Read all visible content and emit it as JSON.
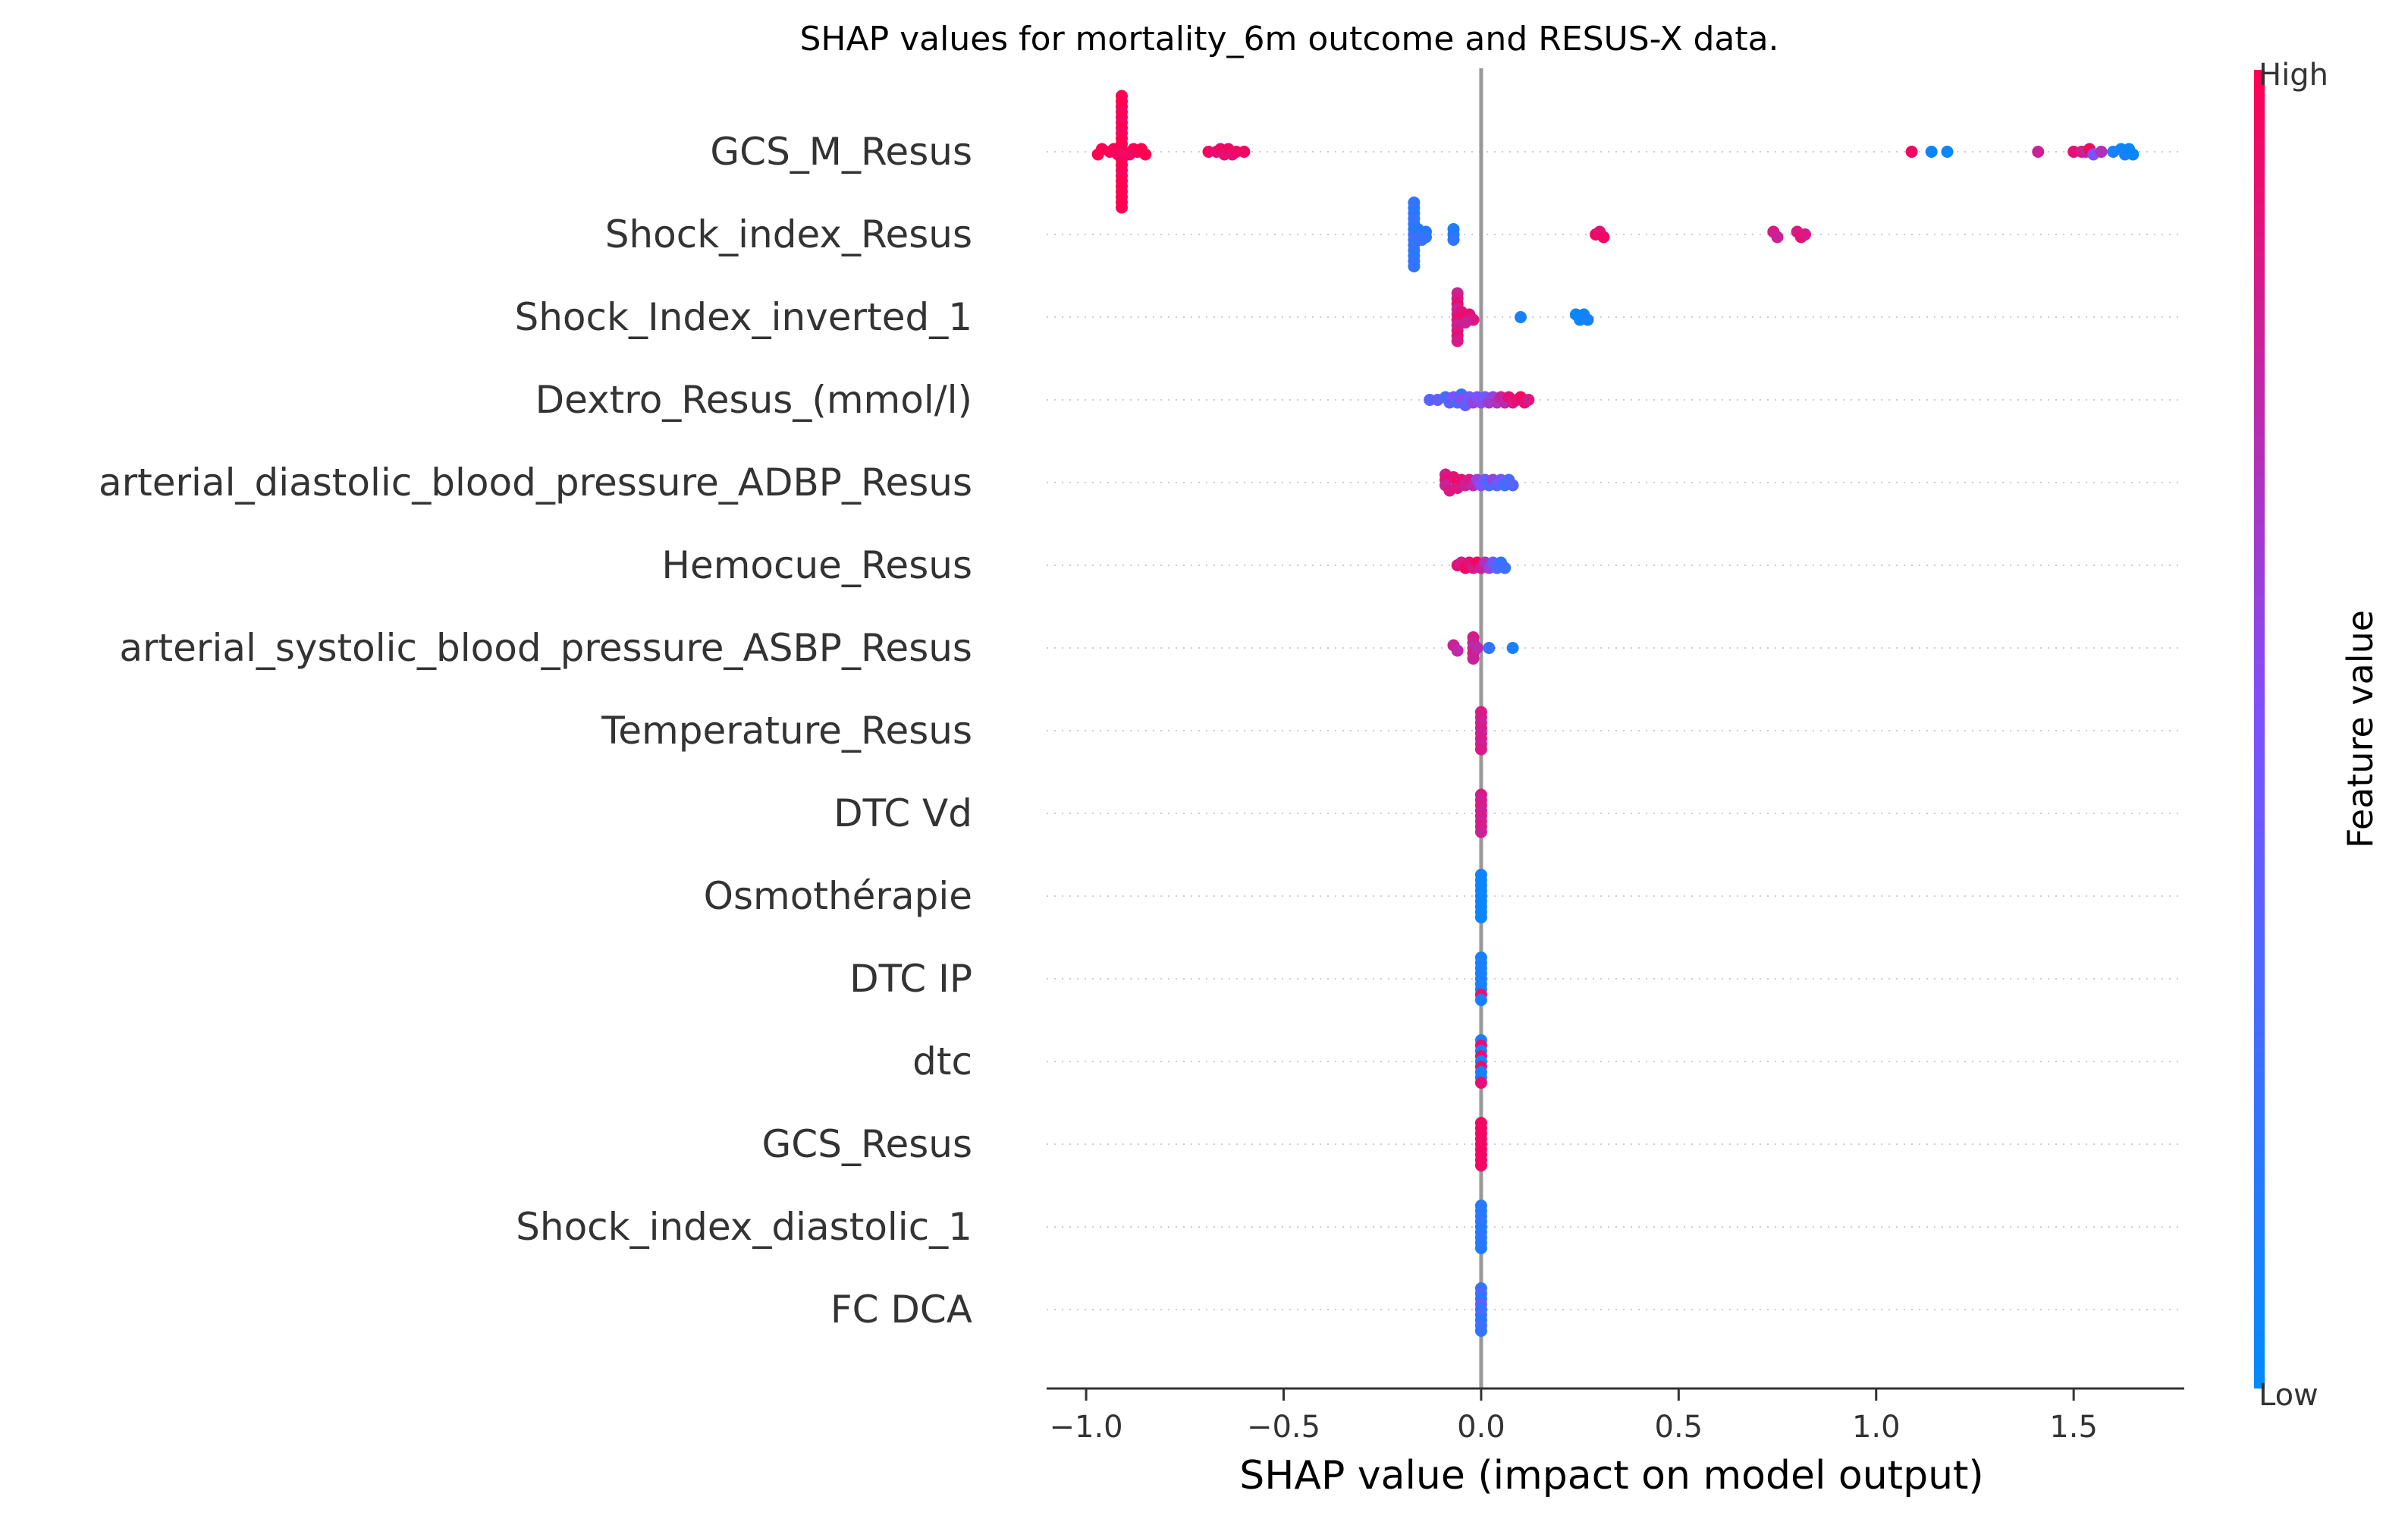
{
  "chart_data": {
    "type": "scatter",
    "subtype": "shap-beeswarm",
    "title": "SHAP values for mortality_6m outcome and RESUS-X data.",
    "xlabel": "SHAP value (impact on model output)",
    "ylabel": "",
    "xlim": [
      -1.1,
      1.78
    ],
    "xticks": [
      -1.0,
      -0.5,
      0.0,
      0.5,
      1.0,
      1.5
    ],
    "xtick_labels": [
      "−1.0",
      "−0.5",
      "0.0",
      "0.5",
      "1.0",
      "1.5"
    ],
    "grid": false,
    "colorbar": {
      "label": "Feature value",
      "high_label": "High",
      "low_label": "Low",
      "low_color": "#008bfb",
      "mid_color": "#7c52ff",
      "high_color": "#ff0052"
    },
    "zero_line_color": "#999999",
    "features": [
      {
        "name": "GCS_M_Resus",
        "points": [
          [
            -0.91,
            1.0
          ],
          [
            -0.91,
            1.0
          ],
          [
            -0.91,
            1.0
          ],
          [
            -0.91,
            0.95
          ],
          [
            -0.91,
            1.0
          ],
          [
            -0.91,
            0.95
          ],
          [
            -0.91,
            1.0
          ],
          [
            -0.91,
            0.95
          ],
          [
            -0.91,
            1.0
          ],
          [
            -0.91,
            1.0
          ],
          [
            -0.91,
            1.0
          ],
          [
            -0.91,
            0.95
          ],
          [
            -0.91,
            1.0
          ],
          [
            -0.91,
            1.0
          ],
          [
            -0.91,
            1.0
          ],
          [
            -0.91,
            0.95
          ],
          [
            -0.91,
            1.0
          ],
          [
            -0.91,
            1.0
          ],
          [
            -0.91,
            1.0
          ],
          [
            -0.91,
            1.0
          ],
          [
            -0.91,
            1.0
          ],
          [
            -0.91,
            1.0
          ],
          [
            -0.94,
            1.0
          ],
          [
            -0.93,
            1.0
          ],
          [
            -0.88,
            1.0
          ],
          [
            -0.87,
            1.0
          ],
          [
            -0.86,
            1.0
          ],
          [
            -0.96,
            1.0
          ],
          [
            -0.97,
            1.0
          ],
          [
            -0.85,
            1.0
          ],
          [
            -0.89,
            0.95
          ],
          [
            -0.92,
            0.95
          ],
          [
            -0.69,
            0.95
          ],
          [
            -0.67,
            0.9
          ],
          [
            -0.66,
            0.95
          ],
          [
            -0.65,
            0.9
          ],
          [
            -0.64,
            0.95
          ],
          [
            -0.63,
            0.9
          ],
          [
            -0.62,
            0.95
          ],
          [
            -0.6,
            0.95
          ],
          [
            1.09,
            0.95
          ],
          [
            1.14,
            0.05
          ],
          [
            1.18,
            0.05
          ],
          [
            1.41,
            0.8
          ],
          [
            1.5,
            0.9
          ],
          [
            1.52,
            0.85
          ],
          [
            1.53,
            0.8
          ],
          [
            1.54,
            0.95
          ],
          [
            1.55,
            0.5
          ],
          [
            1.57,
            0.7
          ],
          [
            1.6,
            0.1
          ],
          [
            1.62,
            0.05
          ],
          [
            1.63,
            0.1
          ],
          [
            1.64,
            0.05
          ],
          [
            1.65,
            0.05
          ]
        ]
      },
      {
        "name": "Shock_index_Resus",
        "points": [
          [
            -0.17,
            0.2
          ],
          [
            -0.17,
            0.2
          ],
          [
            -0.17,
            0.15
          ],
          [
            -0.17,
            0.2
          ],
          [
            -0.17,
            0.2
          ],
          [
            -0.17,
            0.15
          ],
          [
            -0.17,
            0.2
          ],
          [
            -0.17,
            0.25
          ],
          [
            -0.17,
            0.2
          ],
          [
            -0.17,
            0.2
          ],
          [
            -0.17,
            0.15
          ],
          [
            -0.17,
            0.2
          ],
          [
            -0.17,
            0.2
          ],
          [
            -0.16,
            0.15
          ],
          [
            -0.15,
            0.2
          ],
          [
            -0.14,
            0.15
          ],
          [
            -0.15,
            0.25
          ],
          [
            -0.14,
            0.2
          ],
          [
            -0.07,
            0.1
          ],
          [
            -0.07,
            0.15
          ],
          [
            -0.07,
            0.2
          ],
          [
            0.29,
            0.95
          ],
          [
            0.3,
            0.9
          ],
          [
            0.31,
            0.95
          ],
          [
            0.74,
            0.85
          ],
          [
            0.75,
            0.8
          ],
          [
            0.8,
            0.85
          ],
          [
            0.81,
            0.9
          ],
          [
            0.82,
            0.85
          ]
        ]
      },
      {
        "name": "Shock_Index_inverted_1",
        "points": [
          [
            -0.06,
            0.8
          ],
          [
            -0.06,
            0.85
          ],
          [
            -0.06,
            0.9
          ],
          [
            -0.06,
            0.8
          ],
          [
            -0.06,
            0.85
          ],
          [
            -0.06,
            0.9
          ],
          [
            -0.06,
            0.8
          ],
          [
            -0.06,
            0.85
          ],
          [
            -0.06,
            0.9
          ],
          [
            -0.06,
            0.85
          ],
          [
            -0.05,
            0.9
          ],
          [
            -0.04,
            0.95
          ],
          [
            -0.03,
            0.9
          ],
          [
            -0.02,
            0.85
          ],
          [
            -0.04,
            0.8
          ],
          [
            0.1,
            0.1
          ],
          [
            0.24,
            0.05
          ],
          [
            0.25,
            0.05
          ],
          [
            0.26,
            0.05
          ],
          [
            0.27,
            0.1
          ]
        ]
      },
      {
        "name": "Dextro_Resus_(mmol/l)",
        "points": [
          [
            -0.13,
            0.35
          ],
          [
            -0.11,
            0.4
          ],
          [
            -0.09,
            0.3
          ],
          [
            -0.08,
            0.35
          ],
          [
            -0.07,
            0.5
          ],
          [
            -0.06,
            0.3
          ],
          [
            -0.05,
            0.25
          ],
          [
            -0.05,
            0.55
          ],
          [
            -0.04,
            0.4
          ],
          [
            -0.03,
            0.45
          ],
          [
            -0.02,
            0.6
          ],
          [
            -0.01,
            0.5
          ],
          [
            0.0,
            0.55
          ],
          [
            0.01,
            0.45
          ],
          [
            0.02,
            0.65
          ],
          [
            0.03,
            0.6
          ],
          [
            0.04,
            0.7
          ],
          [
            0.05,
            0.8
          ],
          [
            0.06,
            0.75
          ],
          [
            0.07,
            0.9
          ],
          [
            0.08,
            0.85
          ],
          [
            0.09,
            0.9
          ],
          [
            0.1,
            0.95
          ],
          [
            0.11,
            0.9
          ],
          [
            0.12,
            0.85
          ]
        ]
      },
      {
        "name": "arterial_diastolic_blood_pressure_ADBP_Resus",
        "points": [
          [
            -0.09,
            0.85
          ],
          [
            -0.09,
            0.9
          ],
          [
            -0.09,
            0.8
          ],
          [
            -0.08,
            0.85
          ],
          [
            -0.07,
            0.9
          ],
          [
            -0.06,
            0.95
          ],
          [
            -0.06,
            0.85
          ],
          [
            -0.05,
            0.9
          ],
          [
            -0.04,
            0.8
          ],
          [
            -0.03,
            0.85
          ],
          [
            -0.02,
            0.75
          ],
          [
            -0.01,
            0.6
          ],
          [
            0.0,
            0.5
          ],
          [
            0.01,
            0.4
          ],
          [
            0.02,
            0.3
          ],
          [
            0.03,
            0.6
          ],
          [
            0.04,
            0.35
          ],
          [
            0.05,
            0.45
          ],
          [
            0.06,
            0.25
          ],
          [
            0.07,
            0.3
          ],
          [
            0.08,
            0.35
          ]
        ]
      },
      {
        "name": "Hemocue_Resus",
        "points": [
          [
            -0.06,
            0.9
          ],
          [
            -0.05,
            0.85
          ],
          [
            -0.04,
            0.95
          ],
          [
            -0.03,
            0.9
          ],
          [
            -0.02,
            0.85
          ],
          [
            -0.01,
            0.95
          ],
          [
            0.0,
            0.8
          ],
          [
            0.01,
            0.7
          ],
          [
            0.02,
            0.6
          ],
          [
            0.03,
            0.4
          ],
          [
            0.04,
            0.3
          ],
          [
            0.05,
            0.2
          ],
          [
            0.06,
            0.25
          ]
        ]
      },
      {
        "name": "arterial_systolic_blood_pressure_ASBP_Resus",
        "points": [
          [
            -0.07,
            0.8
          ],
          [
            -0.06,
            0.75
          ],
          [
            -0.02,
            0.85
          ],
          [
            -0.02,
            0.8
          ],
          [
            -0.02,
            0.75
          ],
          [
            -0.02,
            0.85
          ],
          [
            -0.02,
            0.8
          ],
          [
            -0.01,
            0.75
          ],
          [
            0.02,
            0.2
          ],
          [
            0.08,
            0.1
          ]
        ]
      },
      {
        "name": "Temperature_Resus",
        "points": [
          [
            0.0,
            0.85
          ],
          [
            0.0,
            0.85
          ],
          [
            0.0,
            0.8
          ],
          [
            0.0,
            0.85
          ],
          [
            0.0,
            0.8
          ],
          [
            0.0,
            0.85
          ],
          [
            0.0,
            0.8
          ],
          [
            0.0,
            0.85
          ]
        ]
      },
      {
        "name": "DTC Vd",
        "points": [
          [
            0.0,
            0.85
          ],
          [
            0.0,
            0.8
          ],
          [
            0.0,
            0.85
          ],
          [
            0.0,
            0.8
          ],
          [
            0.0,
            0.85
          ],
          [
            0.0,
            0.8
          ],
          [
            0.0,
            0.85
          ],
          [
            0.0,
            0.8
          ]
        ]
      },
      {
        "name": "Osmothérapie",
        "points": [
          [
            0.0,
            0.05
          ],
          [
            0.0,
            0.05
          ],
          [
            0.0,
            0.05
          ],
          [
            0.0,
            0.05
          ],
          [
            0.0,
            0.05
          ],
          [
            0.0,
            0.05
          ],
          [
            0.0,
            0.05
          ],
          [
            0.0,
            0.05
          ],
          [
            0.0,
            0.05
          ]
        ]
      },
      {
        "name": "DTC IP",
        "points": [
          [
            0.0,
            0.1
          ],
          [
            0.0,
            0.1
          ],
          [
            0.0,
            0.1
          ],
          [
            0.0,
            0.1
          ],
          [
            0.0,
            0.1
          ],
          [
            0.0,
            0.1
          ],
          [
            0.0,
            0.1
          ],
          [
            0.0,
            0.9
          ],
          [
            0.0,
            0.1
          ]
        ]
      },
      {
        "name": "dtc",
        "points": [
          [
            0.0,
            0.1
          ],
          [
            0.0,
            0.9
          ],
          [
            0.0,
            0.1
          ],
          [
            0.0,
            0.9
          ],
          [
            0.0,
            0.1
          ],
          [
            0.0,
            0.9
          ],
          [
            0.0,
            0.1
          ],
          [
            0.0,
            0.1
          ],
          [
            0.0,
            0.9
          ]
        ]
      },
      {
        "name": "GCS_Resus",
        "points": [
          [
            0.0,
            0.95
          ],
          [
            0.0,
            0.95
          ],
          [
            0.0,
            0.95
          ],
          [
            0.0,
            0.95
          ],
          [
            0.0,
            0.95
          ],
          [
            0.0,
            0.95
          ],
          [
            0.0,
            0.95
          ],
          [
            0.0,
            0.95
          ],
          [
            0.0,
            0.95
          ]
        ]
      },
      {
        "name": "Shock_index_diastolic_1",
        "points": [
          [
            0.0,
            0.15
          ],
          [
            0.0,
            0.15
          ],
          [
            0.0,
            0.15
          ],
          [
            0.0,
            0.2
          ],
          [
            0.0,
            0.15
          ],
          [
            0.0,
            0.15
          ],
          [
            0.0,
            0.2
          ],
          [
            0.0,
            0.15
          ],
          [
            0.0,
            0.15
          ]
        ]
      },
      {
        "name": "FC  DCA",
        "points": [
          [
            0.0,
            0.2
          ],
          [
            0.0,
            0.3
          ],
          [
            0.0,
            0.15
          ],
          [
            0.0,
            0.4
          ],
          [
            0.0,
            0.2
          ],
          [
            0.0,
            0.3
          ],
          [
            0.0,
            0.15
          ],
          [
            0.0,
            0.25
          ],
          [
            0.0,
            0.2
          ]
        ]
      }
    ]
  }
}
